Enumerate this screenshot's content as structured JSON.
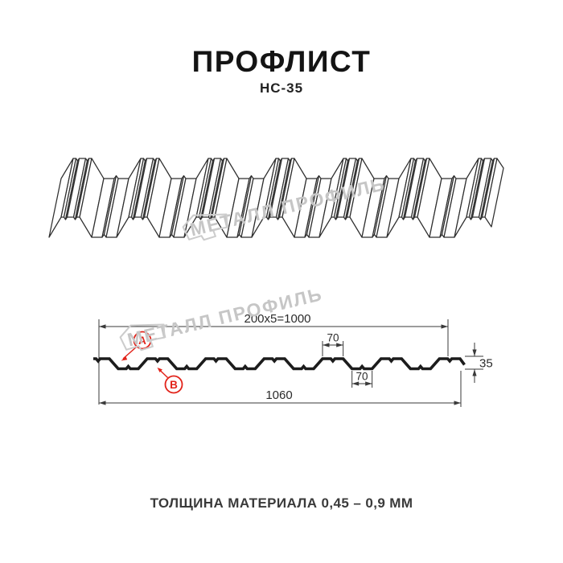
{
  "header": {
    "title": "ПРОФЛИСТ",
    "subtitle": "НС-35"
  },
  "footer": {
    "caption": "ТОЛЩИНА МАТЕРИАЛА 0,45 – 0,9 ММ"
  },
  "watermark": {
    "text": "МЕТАЛЛ ПРОФИЛЬ"
  },
  "drawing": {
    "dim_width_working": "200x5=1000",
    "dim_width_overall": "1060",
    "dim_crest_top": "70",
    "dim_valley_bottom": "70",
    "dim_height": "35",
    "label_a": "А",
    "label_b": "В"
  },
  "colors": {
    "accent_red": "#e2231a",
    "drawing_line": "#1f1f1f",
    "dimension_line": "#3a3a3a",
    "watermark_gray": "#c6c6c6",
    "background": "#ffffff"
  }
}
